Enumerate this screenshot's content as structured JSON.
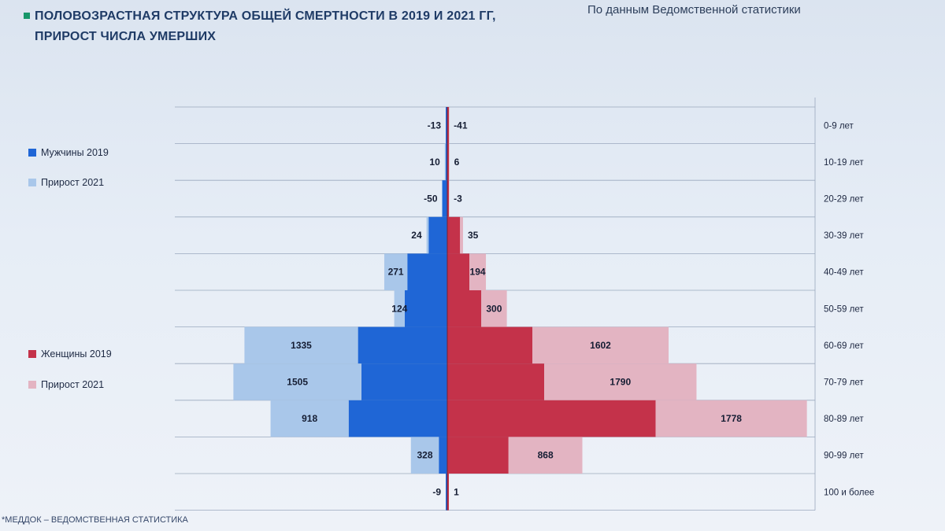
{
  "header": {
    "title_line1": "ПОЛОВОЗРАСТНАЯ СТРУКТУРА ОБЩЕЙ СМЕРТНОСТИ В 2019 И 2021 ГГ,",
    "title_line2": "ПРИРОСТ ЧИСЛА УМЕРШИХ",
    "source": "По данным Ведомственной статистики"
  },
  "footer": "*МЕДДОК – ВЕДОМСТВЕННАЯ СТАТИСТИКА",
  "legend": {
    "men_2019": "Мужчины 2019",
    "men_growth": "Прирост 2021",
    "women_2019": "Женщины 2019",
    "women_growth": "Прирост 2021"
  },
  "colors": {
    "men_2019": "#1f66d6",
    "men_growth": "#a9c7ea",
    "women_2019": "#c4324a",
    "women_growth": "#e3b4c2",
    "accent": "#17966a"
  },
  "chart_data": {
    "type": "bar",
    "orientation": "horizontal-pyramid",
    "categories": [
      "0-9 лет",
      "10-19 лет",
      "20-29 лет",
      "30-39 лет",
      "40-49 лет",
      "50-59 лет",
      "60-69 лет",
      "70-79 лет",
      "80-89 лет",
      "90-99 лет",
      "100  и более"
    ],
    "series": [
      {
        "name": "Мужчины 2019",
        "side": "left",
        "values": [
          15,
          20,
          60,
          220,
          470,
          500,
          1050,
          1010,
          1160,
          100,
          10
        ]
      },
      {
        "name": "Прирост 2021",
        "side": "left",
        "values": [
          -13,
          10,
          -50,
          24,
          271,
          124,
          1335,
          1505,
          918,
          328,
          -9
        ]
      },
      {
        "name": "Женщины 2019",
        "side": "right",
        "values": [
          20,
          15,
          20,
          150,
          260,
          400,
          1000,
          1140,
          2450,
          720,
          5
        ]
      },
      {
        "name": "Прирост 2021",
        "side": "right",
        "values": [
          -41,
          6,
          -3,
          35,
          194,
          300,
          1602,
          1790,
          1778,
          868,
          1
        ]
      }
    ],
    "legend_placement": "left",
    "grid": true
  }
}
